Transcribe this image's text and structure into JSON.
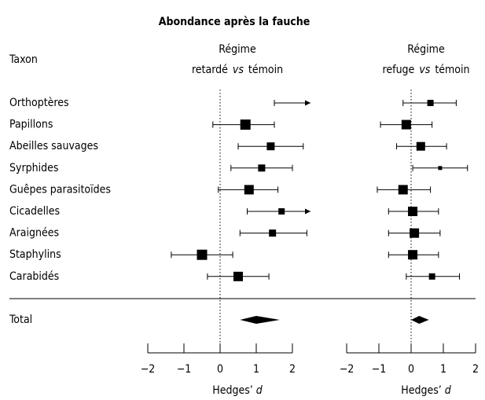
{
  "title": "Abondance après la fauche",
  "row_header": "Taxon",
  "taxa": [
    "Orthoptères",
    "Papillons",
    "Abeilles sauvages",
    "Syrphides",
    "Guêpes parasitoïdes",
    "Cicadelles",
    "Araignées",
    "Staphylins",
    "Carabidés"
  ],
  "total_label": "Total",
  "chart_data": [
    {
      "type": "forest",
      "title": "Régime",
      "comparison": [
        "retardé",
        "vs",
        "témoin"
      ],
      "values": [
        null,
        0.7,
        1.4,
        1.15,
        0.8,
        1.7,
        1.45,
        -0.5,
        0.5
      ],
      "lower": [
        1.5,
        -0.2,
        0.5,
        0.3,
        -0.05,
        0.75,
        0.55,
        -1.35,
        -0.35
      ],
      "upper": [
        2.5,
        1.5,
        2.3,
        2.0,
        1.6,
        2.5,
        2.4,
        0.35,
        1.35
      ],
      "arrows": [
        true,
        false,
        false,
        false,
        false,
        true,
        false,
        false,
        false
      ],
      "weights": [
        null,
        13,
        10,
        9,
        12,
        8,
        9,
        13,
        12
      ],
      "total": {
        "value": 1.0,
        "lower": 0.55,
        "upper": 1.65
      },
      "xlim": [
        -2,
        2
      ],
      "xticks": [
        {
          "value": -2,
          "label": "−2"
        },
        {
          "value": -1,
          "label": "−1"
        },
        0,
        1,
        2
      ],
      "xlabel": [
        "Hedges’",
        "d"
      ]
    },
    {
      "type": "forest",
      "title": "Régime",
      "comparison": [
        "refuge",
        "vs",
        "témoin"
      ],
      "values": [
        0.6,
        -0.15,
        0.3,
        0.9,
        -0.25,
        0.05,
        0.1,
        0.05,
        0.65
      ],
      "lower": [
        -0.25,
        -0.95,
        -0.45,
        0.05,
        -1.05,
        -0.7,
        -0.7,
        -0.7,
        -0.15
      ],
      "upper": [
        1.4,
        0.65,
        1.1,
        1.75,
        0.6,
        0.85,
        0.9,
        0.85,
        1.5
      ],
      "arrows": [
        false,
        false,
        false,
        false,
        false,
        false,
        false,
        false,
        false
      ],
      "weights": [
        8,
        12,
        11,
        5,
        12,
        12,
        12,
        12,
        8
      ],
      "total": {
        "value": 0.25,
        "lower": 0.0,
        "upper": 0.55
      },
      "xlim": [
        -2,
        2
      ],
      "xticks": [
        {
          "value": -2,
          "label": "−2"
        },
        {
          "value": -1,
          "label": "−1"
        },
        0,
        1,
        2
      ],
      "xlabel": [
        "Hedges’",
        "d"
      ]
    }
  ]
}
